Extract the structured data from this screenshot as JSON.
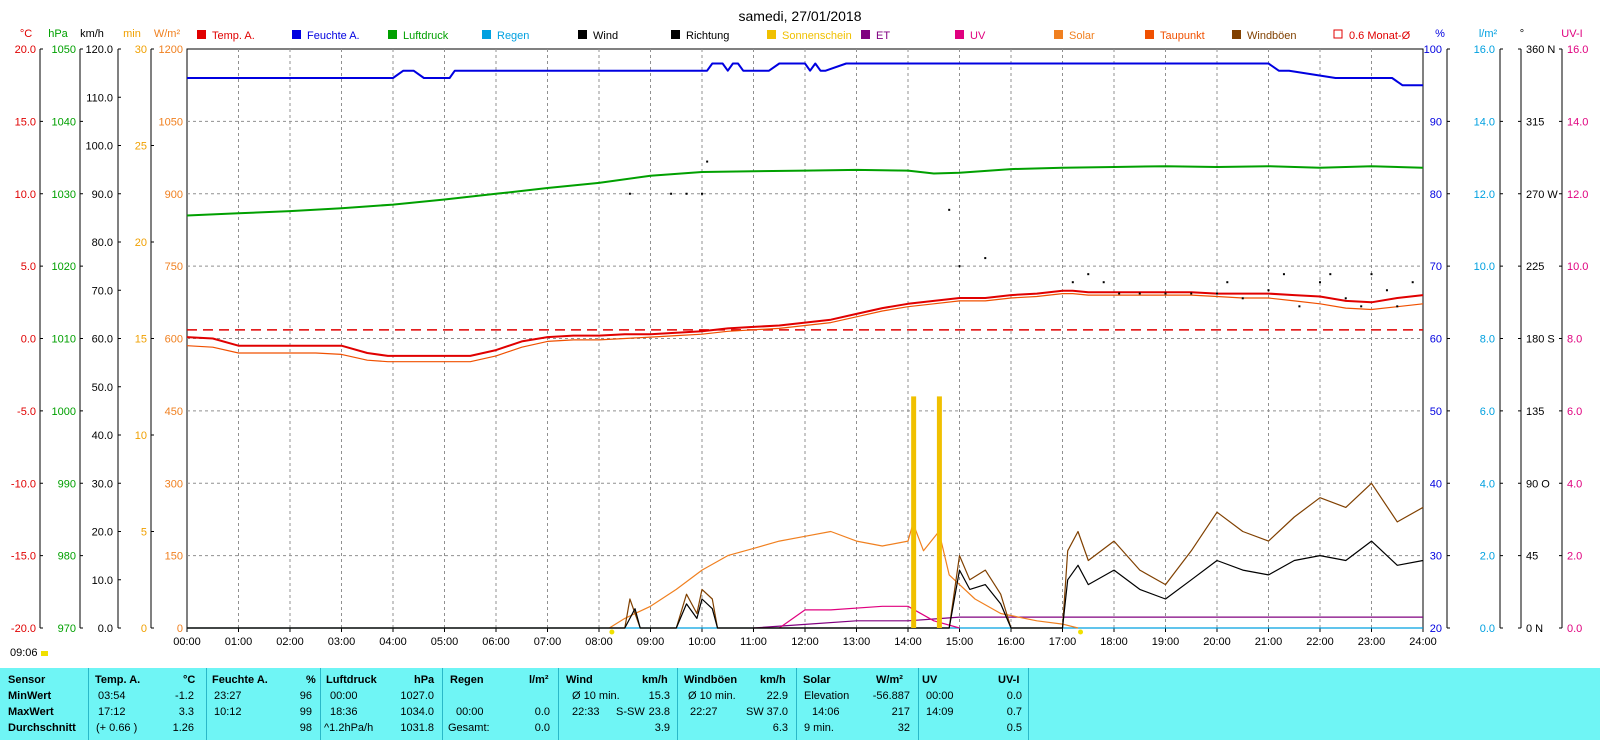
{
  "title": "samedi, 27/01/2018",
  "header_units": {
    "temp": "°C",
    "pressure": "hPa",
    "wind": "km/h",
    "sunshine": "min",
    "solar": "W/m²",
    "humidity": "%",
    "rain": "l/m²",
    "direction": "°",
    "uv": "UV-I"
  },
  "legend": [
    {
      "label": "Temp. A.",
      "color": "#e00000"
    },
    {
      "label": "Feuchte A.",
      "color": "#0000e0"
    },
    {
      "label": "Luftdruck",
      "color": "#00a000"
    },
    {
      "label": "Regen",
      "color": "#00a0e0"
    },
    {
      "label": "Wind",
      "color": "#000000"
    },
    {
      "label": "Richtung",
      "color": "#000000"
    },
    {
      "label": "Sonnenschein",
      "color": "#f0c000"
    },
    {
      "label": "ET",
      "color": "#800080"
    },
    {
      "label": "UV",
      "color": "#e0007f"
    },
    {
      "label": "Solar",
      "color": "#f08020"
    },
    {
      "label": "Taupunkt",
      "color": "#f05000"
    },
    {
      "label": "Windböen",
      "color": "#804000"
    },
    {
      "label": "0.6 Monat-Ø",
      "color": "#e00000",
      "outline": true
    }
  ],
  "axes": {
    "temp": [
      "20.0",
      "15.0",
      "10.0",
      "5.0",
      "0.0",
      "-5.0",
      "-10.0",
      "-15.0",
      "-20.0"
    ],
    "pressure": [
      "1050",
      "1040",
      "1030",
      "1020",
      "1010",
      "1000",
      "990",
      "980",
      "970"
    ],
    "wind": [
      "120.0",
      "110.0",
      "100.0",
      "90.0",
      "80.0",
      "70.0",
      "60.0",
      "50.0",
      "40.0",
      "30.0",
      "20.0",
      "10.0",
      "0.0"
    ],
    "sunshine": [
      "30",
      "25",
      "20",
      "15",
      "10",
      "5",
      "0"
    ],
    "solar": [
      "1200",
      "1050",
      "900",
      "750",
      "600",
      "450",
      "300",
      "150",
      "0"
    ],
    "humidity": [
      "100",
      "90",
      "80",
      "70",
      "60",
      "50",
      "40",
      "30",
      "20"
    ],
    "rain": [
      "16.0",
      "14.0",
      "12.0",
      "10.0",
      "8.0",
      "6.0",
      "4.0",
      "2.0",
      "0.0"
    ],
    "direction": [
      "360 N",
      "315",
      "270 W",
      "225",
      "180 S",
      "135",
      "90 O",
      "45",
      "0 N"
    ],
    "uv": [
      "16.0",
      "14.0",
      "12.0",
      "10.0",
      "8.0",
      "6.0",
      "4.0",
      "2.0",
      "0.0"
    ],
    "time": [
      "00:00",
      "01:00",
      "02:00",
      "03:00",
      "04:00",
      "05:00",
      "06:00",
      "07:00",
      "08:00",
      "09:00",
      "10:00",
      "11:00",
      "12:00",
      "13:00",
      "14:00",
      "15:00",
      "16:00",
      "17:00",
      "18:00",
      "19:00",
      "20:00",
      "21:00",
      "22:00",
      "23:00",
      "24:00"
    ]
  },
  "sunshine_total": "09:06",
  "chart_data": {
    "type": "line",
    "title": "samedi, 27/01/2018",
    "x_unit": "hour",
    "xlim": [
      0,
      24
    ],
    "reference_line": {
      "name": "0.6 Monat-Ø",
      "value": 0.6,
      "unit": "°C"
    },
    "series": [
      {
        "name": "Temp. A.",
        "unit": "°C",
        "color": "#e00000",
        "ylim": [
          -20,
          20
        ],
        "x": [
          0,
          0.5,
          1,
          2,
          2.5,
          3,
          3.5,
          3.9,
          4.5,
          5,
          5.5,
          6,
          6.5,
          7,
          7.5,
          8,
          8.5,
          9,
          9.5,
          10,
          10.5,
          11,
          11.5,
          12,
          12.5,
          13,
          13.5,
          14,
          14.5,
          15,
          15.5,
          16,
          16.5,
          17,
          17.2,
          17.5,
          18,
          18.5,
          19,
          19.5,
          20,
          20.5,
          21,
          21.5,
          22,
          22.5,
          23,
          23.5,
          24
        ],
        "y": [
          0.1,
          0,
          -0.5,
          -0.5,
          -0.5,
          -0.5,
          -1.0,
          -1.2,
          -1.2,
          -1.2,
          -1.2,
          -0.8,
          -0.2,
          0.1,
          0.2,
          0.2,
          0.3,
          0.3,
          0.4,
          0.5,
          0.7,
          0.8,
          0.9,
          1.1,
          1.3,
          1.7,
          2.1,
          2.4,
          2.6,
          2.8,
          2.8,
          3.0,
          3.1,
          3.3,
          3.3,
          3.2,
          3.2,
          3.2,
          3.2,
          3.2,
          3.1,
          3.1,
          3.1,
          3.0,
          2.9,
          2.6,
          2.5,
          2.8,
          3.0
        ]
      },
      {
        "name": "Taupunkt",
        "unit": "°C",
        "color": "#f05000",
        "ylim": [
          -20,
          20
        ],
        "x": [
          0,
          0.5,
          1,
          2,
          2.5,
          3,
          3.5,
          3.9,
          4.5,
          5,
          5.5,
          6,
          6.5,
          7,
          7.5,
          8,
          8.5,
          9,
          9.5,
          10,
          10.5,
          11,
          11.5,
          12,
          12.5,
          13,
          13.5,
          14,
          14.5,
          15,
          15.5,
          16,
          16.5,
          17,
          17.2,
          17.5,
          18,
          18.5,
          19,
          19.5,
          20,
          20.5,
          21,
          21.5,
          22,
          22.5,
          23,
          23.5,
          24
        ],
        "y": [
          -0.5,
          -0.6,
          -1.0,
          -1.0,
          -1.0,
          -1.1,
          -1.5,
          -1.6,
          -1.6,
          -1.6,
          -1.6,
          -1.2,
          -0.6,
          -0.2,
          -0.1,
          -0.1,
          0,
          0.1,
          0.2,
          0.3,
          0.5,
          0.6,
          0.7,
          0.9,
          1.1,
          1.5,
          1.9,
          2.2,
          2.4,
          2.6,
          2.6,
          2.8,
          2.9,
          3.1,
          3.1,
          3.0,
          3.0,
          3.0,
          3.0,
          3.0,
          2.9,
          2.8,
          2.8,
          2.6,
          2.4,
          2.1,
          2.0,
          2.2,
          2.4
        ]
      },
      {
        "name": "Feuchte A.",
        "unit": "%",
        "color": "#0000e0",
        "ylim": [
          20,
          100
        ],
        "x": [
          0,
          4.0,
          4.2,
          4.4,
          4.6,
          5.1,
          5.2,
          9.0,
          10.1,
          10.2,
          10.4,
          10.5,
          10.6,
          10.7,
          10.8,
          11.3,
          11.5,
          12.0,
          12.1,
          12.2,
          12.3,
          12.4,
          12.8,
          19.0,
          21.0,
          21.2,
          21.4,
          22.3,
          23.4,
          23.6,
          23.7,
          24
        ],
        "y": [
          96,
          96,
          97,
          97,
          96,
          96,
          97,
          97,
          97,
          98,
          98,
          97,
          98,
          98,
          97,
          97,
          98,
          98,
          97,
          98,
          97,
          97,
          98,
          98,
          98,
          97,
          97,
          96,
          96,
          95,
          95,
          95
        ]
      },
      {
        "name": "Luftdruck",
        "unit": "hPa",
        "color": "#00a000",
        "ylim": [
          970,
          1050
        ],
        "x": [
          0,
          1,
          2,
          3,
          4,
          5,
          6,
          7,
          8,
          9,
          10,
          11,
          12,
          13,
          14,
          14.5,
          15,
          16,
          17,
          18,
          19,
          20,
          21,
          22,
          23,
          24
        ],
        "y": [
          1027.0,
          1027.3,
          1027.6,
          1028.0,
          1028.5,
          1029.2,
          1030.0,
          1030.8,
          1031.5,
          1032.5,
          1033.0,
          1033.1,
          1033.2,
          1033.3,
          1033.2,
          1032.8,
          1032.9,
          1033.4,
          1033.6,
          1033.7,
          1033.8,
          1033.7,
          1033.8,
          1033.6,
          1033.8,
          1033.6
        ]
      },
      {
        "name": "Solar",
        "unit": "W/m²",
        "color": "#f08020",
        "ylim": [
          0,
          1200
        ],
        "x": [
          8.2,
          8.5,
          9,
          9.5,
          10,
          10.5,
          11,
          11.5,
          12,
          12.5,
          13,
          13.5,
          14,
          14.1,
          14.3,
          14.6,
          14.8,
          15,
          15.3,
          15.8,
          16.5,
          17,
          17.3
        ],
        "y": [
          0,
          20,
          45,
          80,
          120,
          150,
          165,
          180,
          190,
          200,
          180,
          170,
          180,
          217,
          160,
          200,
          110,
          90,
          60,
          30,
          15,
          8,
          0
        ]
      },
      {
        "name": "Wind",
        "unit": "km/h",
        "color": "#000000",
        "ylim": [
          0,
          120
        ],
        "x": [
          0,
          8.5,
          8.7,
          8.8,
          9.0,
          9.5,
          9.7,
          9.9,
          10.0,
          10.2,
          10.3,
          14.8,
          15.0,
          15.2,
          15.5,
          15.8,
          16.0,
          17.0,
          17.1,
          17.3,
          17.5,
          18,
          18.5,
          19,
          19.5,
          20,
          20.5,
          21,
          21.5,
          22,
          22.5,
          23,
          23.5,
          24
        ],
        "y": [
          0,
          0,
          4,
          0,
          0,
          0,
          5,
          2,
          6,
          4,
          0,
          0,
          12,
          8,
          9,
          5,
          0,
          0,
          10,
          13,
          9,
          12,
          8,
          6,
          10,
          14,
          12,
          11,
          14,
          15,
          14,
          18,
          13,
          14
        ]
      },
      {
        "name": "Windböen",
        "unit": "km/h",
        "color": "#804000",
        "ylim": [
          0,
          120
        ],
        "x": [
          0,
          8.5,
          8.6,
          8.8,
          9.0,
          9.5,
          9.7,
          9.9,
          10.0,
          10.2,
          10.3,
          14.8,
          15.0,
          15.2,
          15.5,
          15.8,
          16.0,
          17.0,
          17.1,
          17.3,
          17.5,
          18,
          18.5,
          19,
          19.5,
          20,
          20.5,
          21,
          21.5,
          22,
          22.5,
          23,
          23.5,
          24
        ],
        "y": [
          0,
          0,
          6,
          0,
          0,
          0,
          7,
          3,
          8,
          6,
          0,
          0,
          15,
          10,
          12,
          7,
          0,
          0,
          16,
          20,
          14,
          18,
          12,
          9,
          16,
          24,
          20,
          18,
          23,
          27,
          25,
          30,
          22,
          25
        ]
      },
      {
        "name": "UV",
        "unit": "UV-I",
        "color": "#e0007f",
        "ylim": [
          0,
          16
        ],
        "x": [
          11.5,
          12.0,
          12.5,
          13.5,
          14.0,
          14.5,
          15.0
        ],
        "y": [
          0,
          0.5,
          0.5,
          0.6,
          0.6,
          0.2,
          0
        ]
      },
      {
        "name": "ET",
        "unit": "l/m²",
        "color": "#800080",
        "ylim": [
          0,
          16
        ],
        "x": [
          11,
          12,
          13,
          14,
          14.5,
          15,
          15.5,
          24
        ],
        "y": [
          0,
          0.1,
          0.2,
          0.2,
          0.25,
          0.3,
          0.3,
          0.3
        ]
      },
      {
        "name": "Regen",
        "unit": "l/m²",
        "color": "#00a0e0",
        "ylim": [
          0,
          16
        ],
        "x": [
          0,
          24
        ],
        "y": [
          0,
          0
        ]
      },
      {
        "name": "Sonnenschein",
        "unit": "min",
        "color": "#f0c000",
        "ylim": [
          0,
          30
        ],
        "type": "bar",
        "x": [
          14.1,
          14.6
        ],
        "y": [
          12,
          12
        ]
      },
      {
        "name": "Richtung",
        "unit": "°",
        "color": "#000000",
        "ylim": [
          0,
          360
        ],
        "type": "scatter",
        "x": [
          8.6,
          9.4,
          9.7,
          10.0,
          10.1,
          14.8,
          15.0,
          15.5,
          17.2,
          17.5,
          17.8,
          18.1,
          18.5,
          19.0,
          19.5,
          20,
          20.2,
          20.5,
          21,
          21.3,
          21.6,
          22,
          22.2,
          22.5,
          22.8,
          23,
          23.3,
          23.5,
          23.8
        ],
        "y": [
          270,
          270,
          270,
          270,
          290,
          260,
          225,
          230,
          215,
          220,
          215,
          208,
          208,
          208,
          208,
          208,
          215,
          205,
          210,
          220,
          200,
          215,
          220,
          205,
          200,
          220,
          210,
          200,
          215
        ]
      }
    ]
  },
  "stats": {
    "headers": {
      "sensor": "Sensor",
      "temp": "Temp. A.",
      "temp_unit": "°C",
      "hum": "Feuchte A.",
      "hum_unit": "%",
      "press": "Luftdruck",
      "press_unit": "hPa",
      "rain": "Regen",
      "rain_unit": "l/m²",
      "wind": "Wind",
      "wind_unit": "km/h",
      "gust": "Windböen",
      "gust_unit": "km/h",
      "solar": "Solar",
      "solar_unit": "W/m²",
      "uv": "UV",
      "uv_unit": "UV-I"
    },
    "rows": {
      "min": {
        "label": "MinWert",
        "temp_time": "03:54",
        "temp_val": "-1.2",
        "hum_time": "23:27",
        "hum_val": "96",
        "press_time": "00:00",
        "press_val": "1027.0",
        "rain_time": "",
        "rain_val": "",
        "wind_time": "Ø 10 min.",
        "wind_val": "15.3",
        "gust_time": "Ø 10 min.",
        "gust_val": "22.9",
        "solar_time": "Elevation",
        "solar_val": "-56.887",
        "uv_time": "00:00",
        "uv_val": "0.0"
      },
      "max": {
        "label": "MaxWert",
        "temp_time": "17:12",
        "temp_val": "3.3",
        "hum_time": "10:12",
        "hum_val": "99",
        "press_time": "18:36",
        "press_val": "1034.0",
        "rain_time": "00:00",
        "rain_val": "0.0",
        "wind_time": "22:33",
        "wind_dir": "S-SW",
        "wind_val": "23.8",
        "gust_time": "22:27",
        "gust_dir": "SW",
        "gust_val": "37.0",
        "solar_time": "14:06",
        "solar_val": "217",
        "uv_time": "14:09",
        "uv_val": "0.7"
      },
      "avg": {
        "label": "Durchschnitt",
        "temp_time": "(+ 0.66 )",
        "temp_val": "1.26",
        "hum_time": "",
        "hum_val": "98",
        "press_time": "^1.2hPa/h",
        "press_val": "1031.8",
        "rain_time": "Gesamt:",
        "rain_val": "0.0",
        "wind_time": "",
        "wind_val": "3.9",
        "gust_time": "",
        "gust_val": "6.3",
        "solar_time": "9 min.",
        "solar_val": "32",
        "uv_time": "",
        "uv_val": "0.5"
      }
    }
  }
}
